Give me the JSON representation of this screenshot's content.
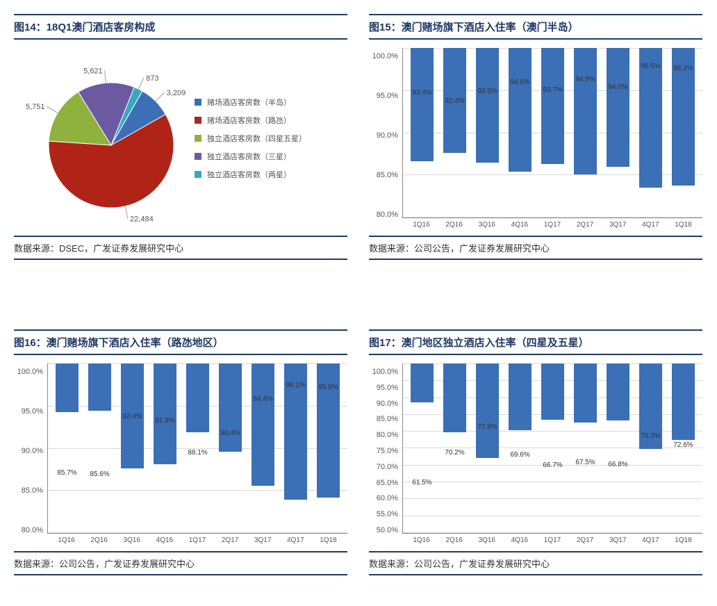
{
  "panels": {
    "p14": {
      "title": "图14：18Q1澳门酒店客房构成",
      "source": "数据来源：DSEC，广发证券发展研究中心",
      "pie": {
        "type": "pie",
        "slices": [
          {
            "label": "赌场酒店客房数（半岛）",
            "value": 3209,
            "display": "3,209",
            "color": "#3b6fb6"
          },
          {
            "label": "赌场酒店客房数（路氹）",
            "value": 22484,
            "display": "22,484",
            "color": "#b02418"
          },
          {
            "label": "独立酒店客房数（四星五星）",
            "value": 5751,
            "display": "5,751",
            "color": "#8fb23e"
          },
          {
            "label": "独立酒店客房数（三星）",
            "value": 5621,
            "display": "5,621",
            "color": "#6b5aa1"
          },
          {
            "label": "独立酒店客房数（两星）",
            "value": 873,
            "display": "873",
            "color": "#3aa6c0"
          }
        ],
        "label_fontsize": 11,
        "label_color": "#555555",
        "leader_color": "#888888",
        "background_color": "#ffffff",
        "start_angle_deg": -60
      }
    },
    "p15": {
      "title": "图15：澳门赌场旗下酒店入住率（澳门半岛）",
      "source": "数据来源：公司公告，广发证券发展研究中心",
      "bar": {
        "type": "bar",
        "categories": [
          "1Q16",
          "2Q16",
          "3Q16",
          "4Q16",
          "1Q17",
          "2Q17",
          "3Q17",
          "4Q17",
          "1Q18"
        ],
        "values": [
          93.4,
          92.4,
          93.5,
          94.6,
          93.7,
          94.9,
          94.0,
          96.5,
          96.2
        ],
        "value_labels": [
          "93.4%",
          "92.4%",
          "93.5%",
          "94.6%",
          "93.7%",
          "94.9%",
          "94.0%",
          "96.5%",
          "96.2%"
        ],
        "bar_color": "#3b6fb6",
        "ylim": [
          80,
          100
        ],
        "ytick_step": 5,
        "ytick_labels": [
          "80.0%",
          "85.0%",
          "90.0%",
          "95.0%",
          "100.0%"
        ],
        "grid_color": "#d9d9d9",
        "axis_color": "#888888",
        "label_fontsize": 10,
        "axis_fontsize": 11,
        "bar_width": 0.7,
        "background_color": "#ffffff"
      }
    },
    "p16": {
      "title": "图16：澳门赌场旗下酒店入住率（路氹地区）",
      "source": "数据来源：公司公告，广发证券发展研究中心",
      "bar": {
        "type": "bar",
        "categories": [
          "1Q16",
          "2Q16",
          "3Q16",
          "4Q16",
          "1Q17",
          "2Q17",
          "3Q17",
          "4Q17",
          "1Q18"
        ],
        "values": [
          85.7,
          85.6,
          92.4,
          91.9,
          88.1,
          90.4,
          94.4,
          96.1,
          95.8
        ],
        "value_labels": [
          "85.7%",
          "85.6%",
          "92.4%",
          "91.9%",
          "88.1%",
          "90.4%",
          "94.4%",
          "96.1%",
          "95.8%"
        ],
        "bar_color": "#3b6fb6",
        "ylim": [
          80,
          100
        ],
        "ytick_step": 5,
        "ytick_labels": [
          "80.0%",
          "85.0%",
          "90.0%",
          "95.0%",
          "100.0%"
        ],
        "grid_color": "#d9d9d9",
        "axis_color": "#888888",
        "label_fontsize": 10,
        "axis_fontsize": 11,
        "bar_width": 0.7,
        "background_color": "#ffffff"
      }
    },
    "p17": {
      "title": "图17：澳门地区独立酒店入住率（四星及五星）",
      "source": "数据来源：公司公告，广发证券发展研究中心",
      "bar": {
        "type": "bar",
        "categories": [
          "1Q16",
          "2Q16",
          "3Q16",
          "4Q16",
          "1Q17",
          "2Q17",
          "3Q17",
          "4Q17",
          "1Q18"
        ],
        "values": [
          61.5,
          70.2,
          77.8,
          69.6,
          66.7,
          67.5,
          66.8,
          75.3,
          72.6
        ],
        "value_labels": [
          "61.5%",
          "70.2%",
          "77.8%",
          "69.6%",
          "66.7%",
          "67.5%",
          "66.8%",
          "75.3%",
          "72.6%"
        ],
        "bar_color": "#3b6fb6",
        "ylim": [
          50,
          100
        ],
        "ytick_step": 5,
        "ytick_labels": [
          "50.0%",
          "55.0%",
          "60.0%",
          "65.0%",
          "70.0%",
          "75.0%",
          "80.0%",
          "85.0%",
          "90.0%",
          "95.0%",
          "100.0%"
        ],
        "grid_color": "#d9d9d9",
        "axis_color": "#888888",
        "label_fontsize": 10,
        "axis_fontsize": 11,
        "bar_width": 0.7,
        "background_color": "#ffffff"
      }
    }
  }
}
